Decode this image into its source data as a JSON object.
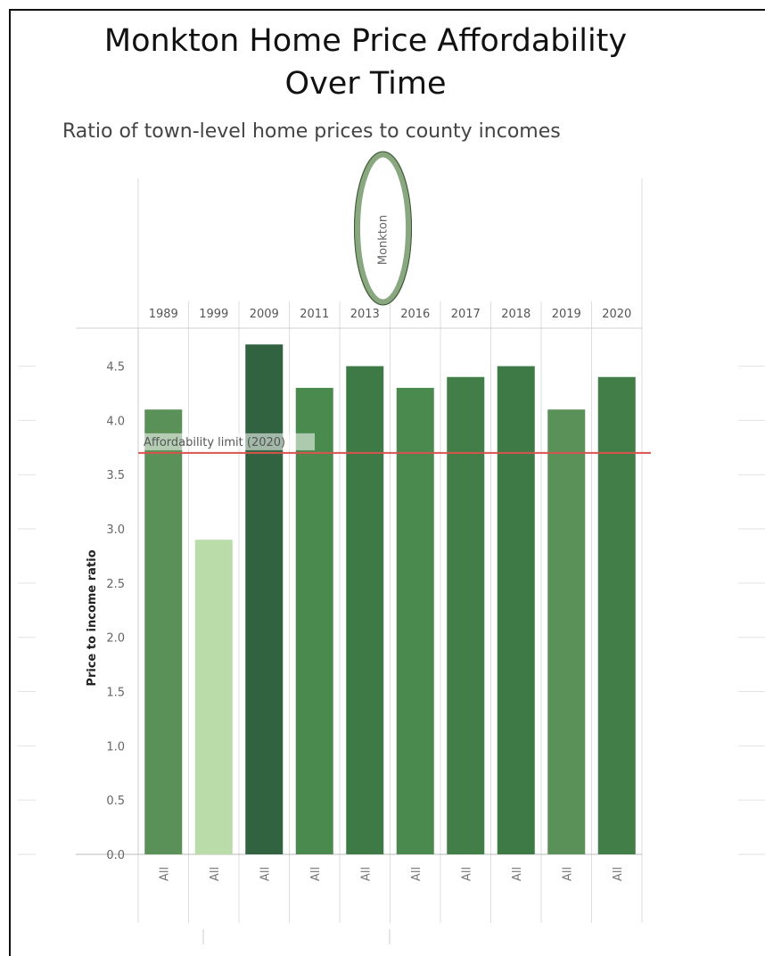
{
  "title_line1": "Monkton Home Price Affordability",
  "title_line2": "Over Time",
  "subtitle": "Ratio of town-level home prices to county incomes",
  "chart_data": {
    "type": "bar",
    "title": "Monkton Home Price Affordability Over Time",
    "subtitle": "Ratio of town-level home prices to county incomes",
    "header_label": "Monkton",
    "categories": [
      "1989",
      "1999",
      "2009",
      "2011",
      "2013",
      "2016",
      "2017",
      "2018",
      "2019",
      "2020"
    ],
    "sub_category_label": "All",
    "values": [
      4.1,
      2.9,
      4.7,
      4.3,
      4.5,
      4.3,
      4.4,
      4.5,
      4.1,
      4.4
    ],
    "bar_colors": [
      "#5a9158",
      "#b9dca9",
      "#326340",
      "#4a8a4e",
      "#3e7a46",
      "#4a8a4e",
      "#417e48",
      "#3e7a46",
      "#5a9158",
      "#417e48"
    ],
    "ylabel": "Price to income ratio",
    "xlabel": "",
    "ylim": [
      0,
      4.85
    ],
    "yticks": [
      "0.0",
      "0.5",
      "1.0",
      "1.5",
      "2.0",
      "2.5",
      "3.0",
      "3.5",
      "4.0",
      "4.5"
    ],
    "reference_line": {
      "label": "Affordability limit (2020)",
      "value": 3.7,
      "color": "#d9534f"
    },
    "annotation": {
      "shape": "ellipse",
      "target": "Monkton",
      "color": "#8aa880"
    },
    "grid": true
  }
}
